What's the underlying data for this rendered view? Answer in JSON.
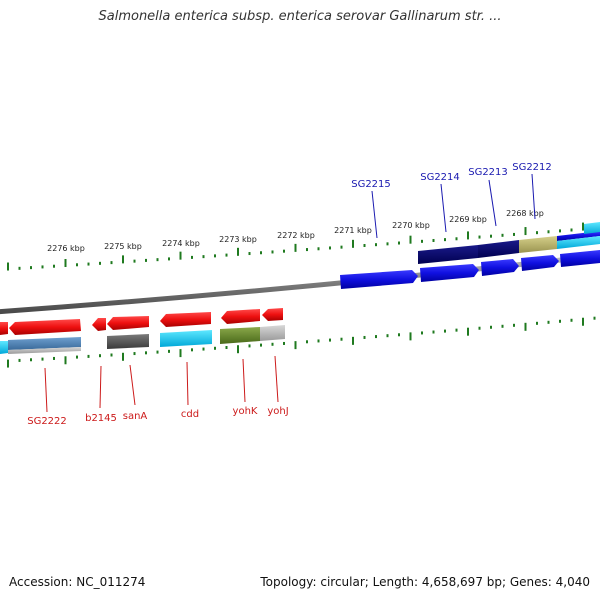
{
  "title": "Salmonella enterica subsp. enterica serovar Gallinarum str. ...",
  "ticks": [
    "2276 kbp",
    "2275 kbp",
    "2274 kbp",
    "2273 kbp",
    "2272 kbp",
    "2271 kbp",
    "2270 kbp",
    "2269 kbp",
    "2268 kbp"
  ],
  "upper_labels": [
    "SG2215",
    "SG2214",
    "SG2213",
    "SG2212"
  ],
  "lower_labels": [
    "SG2222",
    "b2145",
    "sanA",
    "cdd",
    "yohK",
    "yohJ"
  ],
  "footer": {
    "accession": "Accession: NC_011274",
    "summary": "Topology: circular; Length: 4,658,697 bp; Genes: 4,040"
  },
  "colors": {
    "forward_gene": "#1a1ae6",
    "reverse_gene": "#e61a1a",
    "upper_label": "#1a1ab0",
    "lower_label": "#cc1a1a",
    "tick": "#1f7a1f",
    "backbone": "#8a8a8a"
  }
}
